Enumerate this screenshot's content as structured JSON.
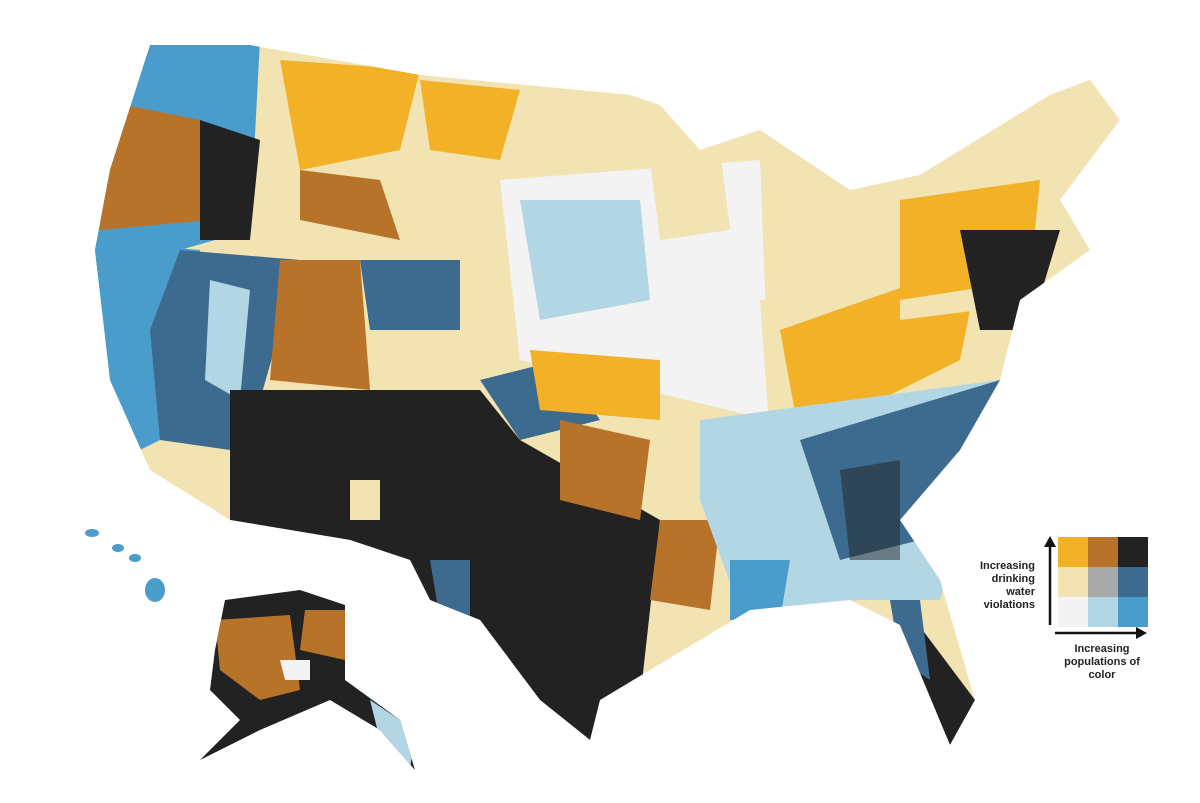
{
  "legend": {
    "y_label": "Increasing drinking water violations",
    "x_label": "Increasing populations of color",
    "colors": [
      [
        "#f2b127",
        "#b8732a",
        "#222222"
      ],
      [
        "#f2e3b3",
        "#a9a9a9",
        "#3d6b90"
      ],
      [
        "#f3f3f3",
        "#b3d6e5",
        "#4a9dcb"
      ]
    ]
  }
}
